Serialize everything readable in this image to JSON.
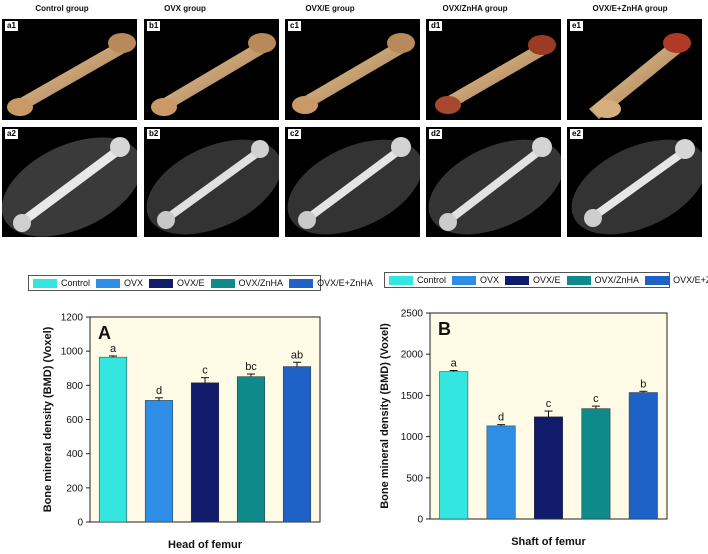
{
  "groups": [
    {
      "title": "Control group",
      "top_label": "a1",
      "bottom_label": "a2"
    },
    {
      "title": "OVX group",
      "top_label": "b1",
      "bottom_label": "b2"
    },
    {
      "title": "OVX/E group",
      "top_label": "c1",
      "bottom_label": "c2"
    },
    {
      "title": "OVX/ZnHA group",
      "top_label": "d1",
      "bottom_label": "d2"
    },
    {
      "title": "OVX/E+ZnHA group",
      "top_label": "e1",
      "bottom_label": "e2"
    }
  ],
  "colors": {
    "Control": "#33e6e0",
    "OVX": "#2e8ee6",
    "OVX/E": "#101b6b",
    "OVX/ZnHA": "#0f8a8a",
    "OVX/E+ZnHA": "#1e62c8",
    "plot_bg": "#fffbe6"
  },
  "legend": [
    "Control",
    "OVX",
    "OVX/E",
    "OVX/ZnHA",
    "OVX/E+ZnHA"
  ],
  "chart_data": [
    {
      "type": "bar",
      "panel_label": "A",
      "categories": [
        "Control",
        "OVX",
        "OVX/E",
        "OVX/ZnHA",
        "OVX/E+ZnHA"
      ],
      "values": [
        965,
        712,
        815,
        851,
        910
      ],
      "errors": [
        7,
        15,
        30,
        15,
        25
      ],
      "letters": [
        "a",
        "d",
        "c",
        "bc",
        "ab"
      ],
      "xlabel": "Head of femur",
      "ylabel": "Bone mineral density (BMD) (Voxel)",
      "ylim": [
        0,
        1200
      ],
      "yticks": [
        0,
        200,
        400,
        600,
        800,
        1000,
        1200
      ]
    },
    {
      "type": "bar",
      "panel_label": "B",
      "categories": [
        "Control",
        "OVX",
        "OVX/E",
        "OVX/ZnHA",
        "OVX/E+ZnHA"
      ],
      "values": [
        1790,
        1130,
        1240,
        1340,
        1535
      ],
      "errors": [
        12,
        15,
        70,
        30,
        15
      ],
      "letters": [
        "a",
        "d",
        "c",
        "c",
        "b"
      ],
      "xlabel": "Shaft of femur",
      "ylabel": "Bone mineral density (BMD) (Voxel)",
      "ylim": [
        0,
        2500
      ],
      "yticks": [
        0,
        500,
        1000,
        1500,
        2000,
        2500
      ]
    }
  ]
}
